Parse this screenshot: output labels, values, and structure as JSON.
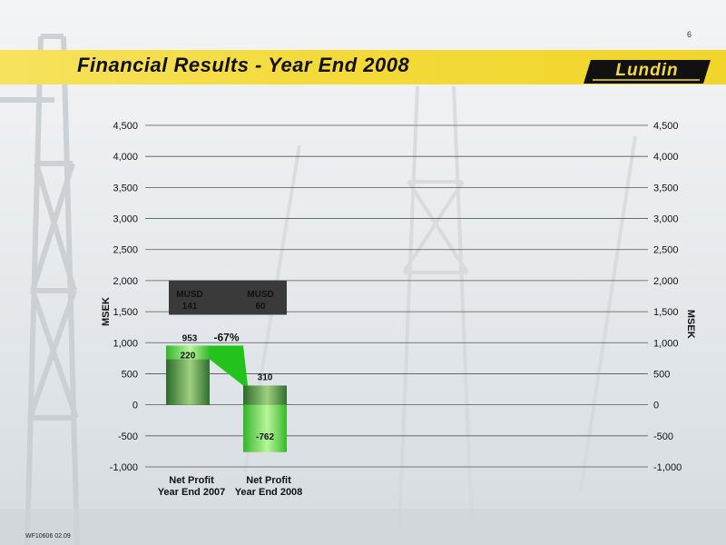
{
  "page": {
    "number": "6",
    "footer_code": "WF10606 02.09"
  },
  "header": {
    "title": "Financial Results -  Year End 2008",
    "logo_text": "Lundin",
    "band_color": "#f3da3a"
  },
  "chart_data": {
    "type": "bar",
    "ylabel": "MSEK",
    "ylabel_right": "MSEK",
    "ylim": [
      -1000,
      4500
    ],
    "yticks": [
      -1000,
      -500,
      0,
      500,
      1000,
      1500,
      2000,
      2500,
      3000,
      3500,
      4000,
      4500
    ],
    "ytick_labels": [
      "-1,000",
      "-500",
      "0",
      "500",
      "1,000",
      "1,500",
      "2,000",
      "2,500",
      "3,000",
      "3,500",
      "4,000",
      "4,500"
    ],
    "categories": [
      "Net Profit\nYear End 2007",
      "Net Profit\nYear End 2008"
    ],
    "bars": [
      {
        "total": 953,
        "total_label": "953",
        "segment_value": 220,
        "segment_label": "220"
      },
      {
        "total": 310,
        "total_label": "310",
        "segment_value": -762,
        "segment_label": "-762"
      }
    ],
    "change_label": "-67%",
    "musd_box": {
      "items": [
        {
          "header": "MUSD",
          "value": "141"
        },
        {
          "header": "MUSD",
          "value": "60"
        }
      ]
    },
    "colors": {
      "bar_dark": "#2f7a2f",
      "bar_light": "#7ed957",
      "connector": "#22c41c",
      "box": "#3a3a3a"
    },
    "grid": true
  }
}
